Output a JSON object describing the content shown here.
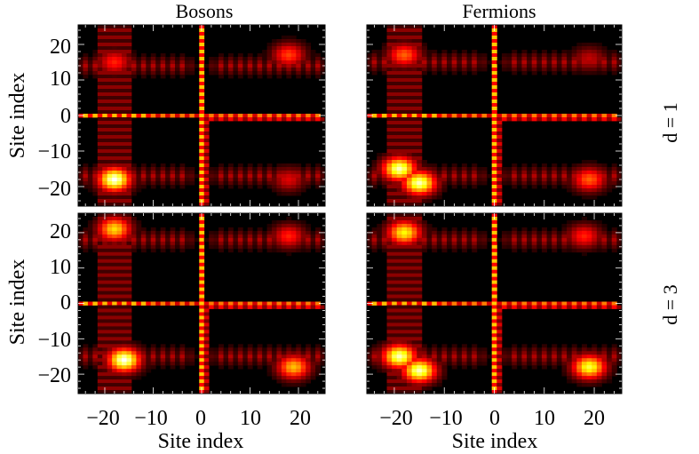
{
  "chart_data": [
    {
      "type": "heatmap",
      "panel": "bosons-d1",
      "title": "Bosons",
      "row_label": "d = 1",
      "xlabel": "",
      "ylabel": "Site index",
      "xlim": [
        -25,
        25
      ],
      "ylim": [
        -25,
        25
      ],
      "yticks": [
        -20,
        -10,
        0,
        10,
        20
      ],
      "colormap": "hot",
      "features": {
        "cross_row": 0,
        "cross_col": 0,
        "hotspots": [
          {
            "x": -18,
            "y": -18,
            "intensity": 1.0
          },
          {
            "x": -18,
            "y": 15,
            "intensity": 0.45
          },
          {
            "x": 18,
            "y": 17,
            "intensity": 0.5
          },
          {
            "x": 18,
            "y": -18,
            "intensity": 0.35
          }
        ],
        "band_rows": [
          -17,
          14
        ]
      }
    },
    {
      "type": "heatmap",
      "panel": "fermions-d1",
      "title": "Fermions",
      "row_label": "d = 1",
      "xlabel": "",
      "ylabel": "",
      "xlim": [
        -25,
        25
      ],
      "ylim": [
        -25,
        25
      ],
      "colormap": "hot",
      "features": {
        "cross_row": 0,
        "cross_col": 0,
        "hotspots": [
          {
            "x": -19,
            "y": -15,
            "intensity": 0.95
          },
          {
            "x": -15,
            "y": -19,
            "intensity": 0.95
          },
          {
            "x": -18,
            "y": 17,
            "intensity": 0.55
          },
          {
            "x": 19,
            "y": -18,
            "intensity": 0.55
          },
          {
            "x": 19,
            "y": 16,
            "intensity": 0.3
          }
        ],
        "band_rows": [
          -17,
          15
        ]
      }
    },
    {
      "type": "heatmap",
      "panel": "bosons-d3",
      "title": "",
      "row_label": "d = 3",
      "xlabel": "Site index",
      "ylabel": "Site index",
      "xlim": [
        -25,
        25
      ],
      "ylim": [
        -25,
        25
      ],
      "xticks": [
        -20,
        -10,
        0,
        10,
        20
      ],
      "yticks": [
        -20,
        -10,
        0,
        10,
        20
      ],
      "colormap": "hot",
      "features": {
        "cross_row": 0,
        "cross_col": 0,
        "hotspots": [
          {
            "x": -16,
            "y": -16,
            "intensity": 1.0
          },
          {
            "x": -18,
            "y": 21,
            "intensity": 0.75
          },
          {
            "x": 19,
            "y": -18,
            "intensity": 0.7
          },
          {
            "x": 18,
            "y": 19,
            "intensity": 0.45
          }
        ],
        "band_rows": [
          -15,
          18
        ]
      }
    },
    {
      "type": "heatmap",
      "panel": "fermions-d3",
      "title": "",
      "row_label": "d = 3",
      "xlabel": "Site index",
      "ylabel": "",
      "xlim": [
        -25,
        25
      ],
      "ylim": [
        -25,
        25
      ],
      "xticks": [
        -20,
        -10,
        0,
        10,
        20
      ],
      "colormap": "hot",
      "features": {
        "cross_row": 0,
        "cross_col": 0,
        "hotspots": [
          {
            "x": -19,
            "y": -15,
            "intensity": 0.95
          },
          {
            "x": -15,
            "y": -19,
            "intensity": 0.95
          },
          {
            "x": -18,
            "y": 20,
            "intensity": 0.8
          },
          {
            "x": 19,
            "y": -18,
            "intensity": 0.85
          },
          {
            "x": 18,
            "y": 19,
            "intensity": 0.45
          }
        ],
        "band_rows": [
          -15,
          18
        ]
      }
    }
  ],
  "titles": {
    "col1": "Bosons",
    "col2": "Fermions",
    "row1": "d = 1",
    "row2": "d = 3"
  },
  "axis_labels": {
    "ylabel_top": "Site index",
    "ylabel_bottom": "Site index",
    "xlabel_left": "Site index",
    "xlabel_right": "Site index"
  },
  "tick_labels": {
    "y_top": [
      "20",
      "10",
      "0",
      "−10",
      "−20"
    ],
    "y_bottom": [
      "20",
      "10",
      "0",
      "−10",
      "−20"
    ],
    "x_left": [
      "−20",
      "−10",
      "0",
      "10",
      "20"
    ],
    "x_right": [
      "−20",
      "−10",
      "0",
      "10",
      "20"
    ]
  }
}
